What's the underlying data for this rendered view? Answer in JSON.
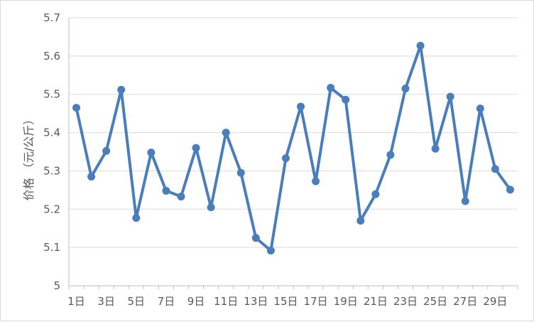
{
  "chart_data": {
    "type": "line",
    "title": "",
    "xlabel": "",
    "ylabel": "价格 （元/公斤）",
    "ylim": [
      5,
      5.7
    ],
    "y_ticks": [
      "5",
      "5.1",
      "5.2",
      "5.3",
      "5.4",
      "5.5",
      "5.6",
      "5.7"
    ],
    "x": [
      1,
      2,
      3,
      4,
      5,
      6,
      7,
      8,
      9,
      10,
      11,
      12,
      13,
      14,
      15,
      16,
      17,
      18,
      19,
      20,
      21,
      22,
      23,
      24,
      25,
      26,
      27,
      28,
      29,
      30
    ],
    "x_tick_labels": [
      "1日",
      "3日",
      "5日",
      "7日",
      "9日",
      "11日",
      "13日",
      "15日",
      "17日",
      "19日",
      "21日",
      "23日",
      "25日",
      "27日",
      "29日"
    ],
    "series": [
      {
        "values": [
          5.465,
          5.285,
          5.352,
          5.512,
          5.177,
          5.348,
          5.248,
          5.233,
          5.36,
          5.205,
          5.4,
          5.295,
          5.125,
          5.092,
          5.333,
          5.468,
          5.273,
          5.517,
          5.486,
          5.17,
          5.239,
          5.342,
          5.515,
          5.627,
          5.358,
          5.494,
          5.221,
          5.463,
          5.305,
          5.251
        ],
        "color": "#4a7ebb"
      }
    ],
    "grid": true,
    "legend": "none"
  }
}
